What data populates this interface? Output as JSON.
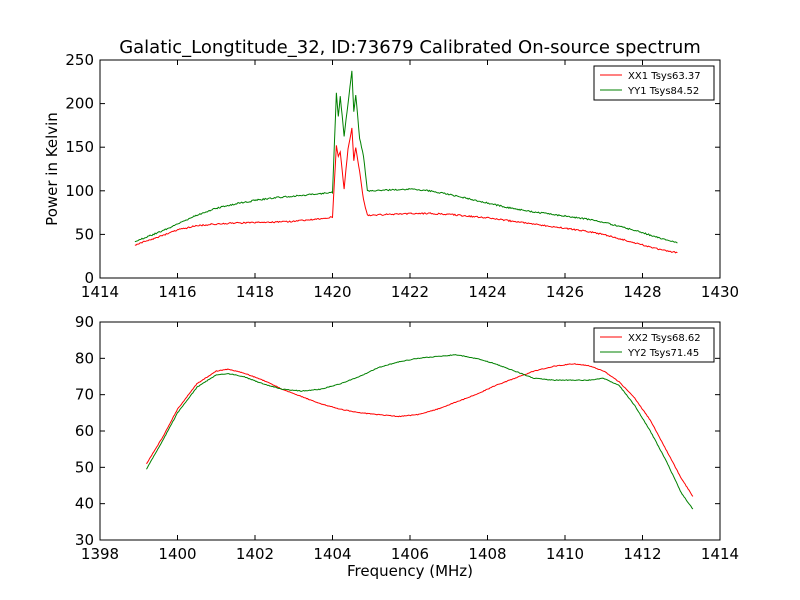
{
  "figure": {
    "title": "Galatic_Longtitude_32, ID:73679 Calibrated On-source spectrum"
  },
  "chart_data": [
    {
      "type": "line",
      "title": "Galatic_Longtitude_32, ID:73679 Calibrated On-source spectrum",
      "xlabel": "",
      "ylabel": "Power in Kelvin",
      "xlim": [
        1414,
        1430
      ],
      "ylim": [
        0,
        250
      ],
      "xticks": [
        1414,
        1416,
        1418,
        1420,
        1422,
        1424,
        1426,
        1428,
        1430
      ],
      "yticks": [
        0,
        50,
        100,
        150,
        200,
        250
      ],
      "grid": false,
      "legend_position": "top-right",
      "series": [
        {
          "name": "XX1 Tsys63.37",
          "color": "#ff0000",
          "x": [
            1414.9,
            1415.5,
            1416.0,
            1416.5,
            1417.0,
            1417.5,
            1418.0,
            1418.5,
            1419.0,
            1419.5,
            1420.0,
            1420.1,
            1420.15,
            1420.2,
            1420.3,
            1420.4,
            1420.5,
            1420.55,
            1420.6,
            1420.7,
            1420.8,
            1420.9,
            1421.0,
            1421.5,
            1422.0,
            1422.5,
            1423.0,
            1423.5,
            1424.0,
            1424.5,
            1425.0,
            1425.5,
            1426.0,
            1426.5,
            1427.0,
            1427.5,
            1428.0,
            1428.5,
            1428.9
          ],
          "values": [
            38,
            47,
            55,
            60,
            62,
            63,
            63.5,
            64,
            65,
            67,
            70,
            152,
            140,
            145,
            102,
            148,
            172,
            135,
            150,
            122,
            90,
            72,
            72,
            73,
            74,
            74,
            73,
            71,
            69,
            66,
            63,
            60,
            57,
            54,
            50,
            44,
            38,
            32,
            29
          ]
        },
        {
          "name": "YY1 Tsys84.52",
          "color": "#008000",
          "x": [
            1414.9,
            1415.5,
            1416.0,
            1416.5,
            1417.0,
            1417.5,
            1418.0,
            1418.5,
            1419.0,
            1419.5,
            1420.0,
            1420.1,
            1420.15,
            1420.2,
            1420.3,
            1420.4,
            1420.5,
            1420.55,
            1420.6,
            1420.7,
            1420.8,
            1420.9,
            1421.0,
            1421.5,
            1422.0,
            1422.5,
            1423.0,
            1423.5,
            1424.0,
            1424.5,
            1425.0,
            1425.5,
            1426.0,
            1426.5,
            1427.0,
            1427.5,
            1428.0,
            1428.5,
            1428.9
          ],
          "values": [
            42,
            52,
            62,
            72,
            80,
            85,
            89,
            92,
            94,
            96,
            98,
            212,
            185,
            208,
            163,
            200,
            238,
            190,
            210,
            160,
            140,
            100,
            100,
            101,
            102,
            100,
            96,
            91,
            86,
            81,
            77,
            74,
            71,
            68,
            64,
            58,
            52,
            45,
            40
          ]
        }
      ]
    },
    {
      "type": "line",
      "title": "",
      "xlabel": "Frequency (MHz)",
      "ylabel": "",
      "xlim": [
        1398,
        1414
      ],
      "ylim": [
        30,
        90
      ],
      "xticks": [
        1398,
        1400,
        1402,
        1404,
        1406,
        1408,
        1410,
        1412,
        1414
      ],
      "yticks": [
        30,
        40,
        50,
        60,
        70,
        80,
        90
      ],
      "grid": false,
      "legend_position": "top-right",
      "series": [
        {
          "name": "XX2 Tsys68.62",
          "color": "#ff0000",
          "x": [
            1399.2,
            1399.6,
            1400.0,
            1400.5,
            1401.0,
            1401.3,
            1401.7,
            1402.2,
            1402.7,
            1403.2,
            1403.7,
            1404.2,
            1404.7,
            1405.2,
            1405.7,
            1406.2,
            1406.7,
            1407.2,
            1407.7,
            1408.2,
            1408.7,
            1409.2,
            1409.7,
            1410.2,
            1410.6,
            1411.0,
            1411.4,
            1411.8,
            1412.2,
            1412.6,
            1413.0,
            1413.3
          ],
          "values": [
            51,
            58,
            66,
            73,
            76.5,
            77,
            76,
            74,
            71.5,
            69.5,
            67.5,
            66,
            65,
            64.5,
            64,
            64.5,
            66,
            68,
            70,
            72.5,
            74.5,
            76.5,
            77.8,
            78.5,
            78,
            76.5,
            73.5,
            69,
            63,
            55,
            47,
            42
          ]
        },
        {
          "name": "YY2 Tsys71.45",
          "color": "#008000",
          "x": [
            1399.2,
            1399.6,
            1400.0,
            1400.5,
            1401.0,
            1401.3,
            1401.7,
            1402.2,
            1402.7,
            1403.2,
            1403.7,
            1404.2,
            1404.7,
            1405.2,
            1405.7,
            1406.2,
            1406.7,
            1407.2,
            1407.7,
            1408.2,
            1408.7,
            1409.2,
            1409.7,
            1410.2,
            1410.6,
            1411.0,
            1411.4,
            1411.8,
            1412.2,
            1412.6,
            1413.0,
            1413.3
          ],
          "values": [
            49.5,
            57,
            65,
            72,
            75.5,
            75.8,
            75,
            73,
            71.5,
            71,
            71.5,
            73,
            75,
            77.5,
            79,
            80,
            80.5,
            81,
            80,
            78.5,
            76.5,
            74.5,
            74,
            74,
            74,
            74.5,
            72.5,
            67,
            60,
            52,
            43,
            38.5
          ]
        }
      ]
    }
  ]
}
